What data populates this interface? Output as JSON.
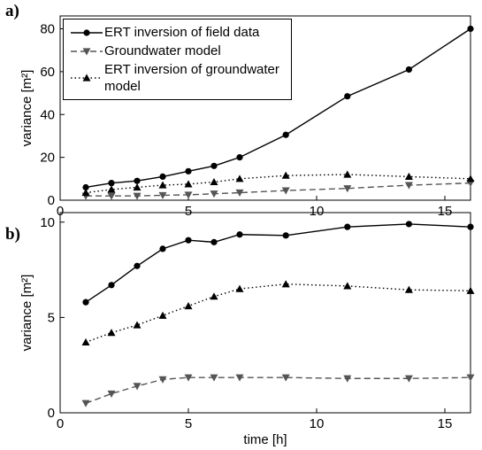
{
  "chart_data": [
    {
      "type": "line",
      "panel_label": "a)",
      "ylabel": "variance [m²]",
      "x": [
        1,
        2,
        3,
        4,
        5,
        6,
        7,
        8.8,
        11.2,
        13.6,
        16
      ],
      "xlim": [
        0,
        16
      ],
      "xticks": [
        0,
        5,
        10,
        15
      ],
      "ylim": [
        0,
        86
      ],
      "yticks": [
        0,
        20,
        40,
        60,
        80
      ],
      "legend": "upper left",
      "series": [
        {
          "name": "ERT inversion of field data",
          "color": "#000000",
          "linestyle": "solid",
          "marker": "circle",
          "values": [
            6,
            8,
            9,
            11,
            13.5,
            16,
            20,
            30.5,
            48.5,
            61,
            80
          ]
        },
        {
          "name": "Groundwater model",
          "color": "#555555",
          "linestyle": "dashed",
          "marker": "triangle-down",
          "values": [
            2,
            2,
            2,
            2.3,
            2.5,
            3,
            3.5,
            4.5,
            5.5,
            7,
            8
          ]
        },
        {
          "name": "ERT inversion of groundwater model",
          "color": "#000000",
          "linestyle": "dotted",
          "marker": "triangle-up",
          "values": [
            3.5,
            5,
            6,
            7,
            7.5,
            8.5,
            10,
            11.5,
            12,
            11,
            10
          ]
        }
      ]
    },
    {
      "type": "line",
      "panel_label": "b)",
      "ylabel": "variance [m²]",
      "xlabel": "time [h]",
      "x": [
        1,
        2,
        3,
        4,
        5,
        6,
        7,
        8.8,
        11.2,
        13.6,
        16
      ],
      "xlim": [
        0,
        16
      ],
      "xticks": [
        0,
        5,
        10,
        15
      ],
      "ylim": [
        0,
        10.5
      ],
      "yticks": [
        0,
        5,
        10
      ],
      "series": [
        {
          "color": "#000000",
          "linestyle": "solid",
          "marker": "circle",
          "values": [
            5.8,
            6.7,
            7.7,
            8.6,
            9.05,
            8.95,
            9.35,
            9.3,
            9.75,
            9.9,
            9.75
          ]
        },
        {
          "color": "#555555",
          "linestyle": "dashed",
          "marker": "triangle-down",
          "values": [
            0.5,
            1.0,
            1.4,
            1.75,
            1.85,
            1.85,
            1.85,
            1.85,
            1.8,
            1.8,
            1.85
          ]
        },
        {
          "color": "#000000",
          "linestyle": "dotted",
          "marker": "triangle-up",
          "values": [
            3.7,
            4.2,
            4.6,
            5.1,
            5.6,
            6.1,
            6.5,
            6.75,
            6.65,
            6.45,
            6.4
          ]
        }
      ]
    }
  ]
}
